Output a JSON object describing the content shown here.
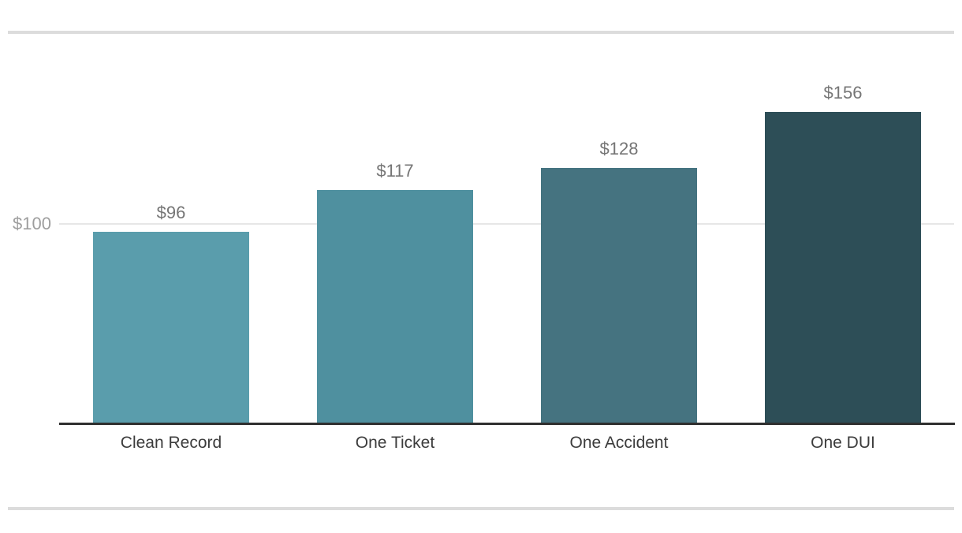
{
  "chart_data": {
    "type": "bar",
    "title": "",
    "xlabel": "",
    "ylabel": "",
    "categories": [
      "Clean Record",
      "One Ticket",
      "One Accident",
      "One DUI"
    ],
    "values": [
      96,
      117,
      128,
      156
    ],
    "value_labels": [
      "$96",
      "$117",
      "$128",
      "$156"
    ],
    "bar_colors": [
      "#5a9dac",
      "#4f909f",
      "#457380",
      "#2d4e57"
    ],
    "ytick": {
      "value": 100,
      "label": "$100"
    },
    "ylim": [
      0,
      173
    ],
    "grid": "single horizontal gridline at y=100",
    "legend": "none"
  },
  "colors": {
    "background": "#ffffff",
    "divider": "#dcdcdc",
    "gridline": "#e7e7e7",
    "axis_line": "#2f2f2f",
    "value_label_text": "#757575",
    "category_label_text": "#3c3c3c",
    "ytick_text": "#9e9e9e"
  }
}
